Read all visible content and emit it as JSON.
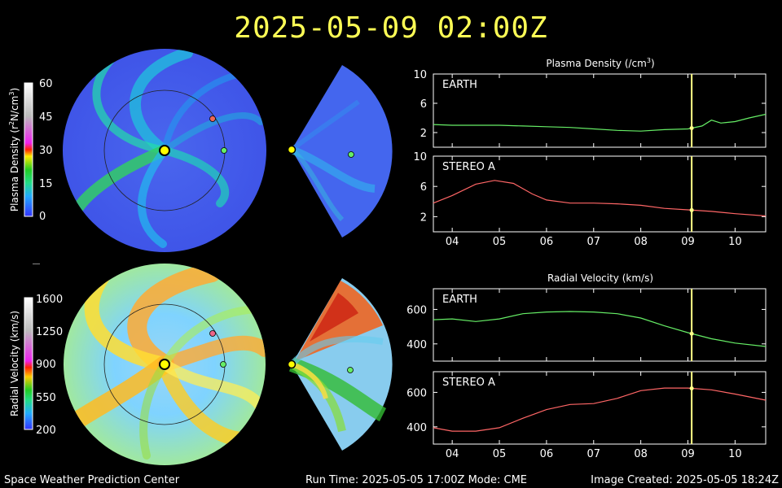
{
  "header": {
    "timestamp": "2025-05-09  02:00Z"
  },
  "footer": {
    "left": "Space Weather Prediction Center",
    "center": "Run Time: 2025-05-05 17:00Z  Mode: CME",
    "right": "Image Created: 2025-05-05 18:24Z"
  },
  "colors": {
    "earth": "#66ee66",
    "stereo_a": "#ff6666",
    "marker": "#ffff88",
    "sun": "#ffff00"
  },
  "colorbars": {
    "density": {
      "label": "Plasma Density (r",
      "label_sup1": "2",
      "label_mid": "N/cm",
      "label_sup2": "3",
      "label_end": ")",
      "ticks": [
        "60",
        "45",
        "30",
        "15",
        "0"
      ]
    },
    "velocity": {
      "label": "Radial Velocity (km/s)",
      "ticks": [
        "1600",
        "1250",
        "900",
        "550",
        "200"
      ]
    }
  },
  "chart_data": [
    {
      "type": "line",
      "title": "Plasma Density (/cm",
      "title_sup": "3",
      "title_end": ")",
      "panel": "EARTH",
      "xlim": [
        3.6,
        10.65
      ],
      "ylim": [
        0,
        10
      ],
      "yticks": [
        "10",
        "6",
        "2"
      ],
      "ytick_values": [
        10,
        6,
        2
      ],
      "marker_x": 9.08,
      "x": [
        3.6,
        4.0,
        4.5,
        5.0,
        5.5,
        6.0,
        6.5,
        7.0,
        7.5,
        8.0,
        8.5,
        9.0,
        9.3,
        9.5,
        9.7,
        10.0,
        10.3,
        10.65
      ],
      "y": [
        3.1,
        3.0,
        3.0,
        3.0,
        2.9,
        2.8,
        2.7,
        2.5,
        2.3,
        2.2,
        2.4,
        2.5,
        2.9,
        3.7,
        3.3,
        3.5,
        4.0,
        4.5
      ]
    },
    {
      "type": "line",
      "panel": "STEREO A",
      "xlim": [
        3.6,
        10.65
      ],
      "ylim": [
        0,
        10
      ],
      "yticks": [
        "10",
        "6",
        "2"
      ],
      "ytick_values": [
        10,
        6,
        2
      ],
      "xticks": [
        "04",
        "05",
        "06",
        "07",
        "08",
        "09",
        "10"
      ],
      "xtick_values": [
        4,
        5,
        6,
        7,
        8,
        9,
        10
      ],
      "marker_x": 9.08,
      "x": [
        3.6,
        4.0,
        4.5,
        4.9,
        5.3,
        5.7,
        6.0,
        6.5,
        7.0,
        7.5,
        8.0,
        8.5,
        9.0,
        9.5,
        10.0,
        10.65
      ],
      "y": [
        3.8,
        4.8,
        6.3,
        6.8,
        6.4,
        5.0,
        4.2,
        3.8,
        3.8,
        3.7,
        3.5,
        3.1,
        2.9,
        2.7,
        2.4,
        2.1
      ]
    },
    {
      "type": "line",
      "title": "Radial Velocity (km/s)",
      "panel": "EARTH",
      "xlim": [
        3.6,
        10.65
      ],
      "ylim": [
        300,
        720
      ],
      "yticks": [
        "600",
        "400"
      ],
      "ytick_values": [
        600,
        400
      ],
      "marker_x": 9.08,
      "x": [
        3.6,
        4.0,
        4.5,
        5.0,
        5.5,
        6.0,
        6.5,
        7.0,
        7.5,
        8.0,
        8.5,
        9.0,
        9.5,
        10.0,
        10.65
      ],
      "y": [
        540,
        545,
        530,
        545,
        575,
        585,
        588,
        585,
        575,
        550,
        505,
        465,
        430,
        405,
        385
      ]
    },
    {
      "type": "line",
      "panel": "STEREO A",
      "xlim": [
        3.6,
        10.65
      ],
      "ylim": [
        300,
        720
      ],
      "yticks": [
        "600",
        "400"
      ],
      "ytick_values": [
        600,
        400
      ],
      "xticks": [
        "04",
        "05",
        "06",
        "07",
        "08",
        "09",
        "10"
      ],
      "xtick_values": [
        4,
        5,
        6,
        7,
        8,
        9,
        10
      ],
      "marker_x": 9.08,
      "x": [
        3.6,
        4.0,
        4.5,
        5.0,
        5.5,
        6.0,
        6.5,
        7.0,
        7.5,
        8.0,
        8.5,
        9.0,
        9.5,
        10.0,
        10.65
      ],
      "y": [
        395,
        375,
        375,
        395,
        450,
        500,
        530,
        535,
        565,
        610,
        625,
        625,
        615,
        590,
        555
      ]
    }
  ]
}
